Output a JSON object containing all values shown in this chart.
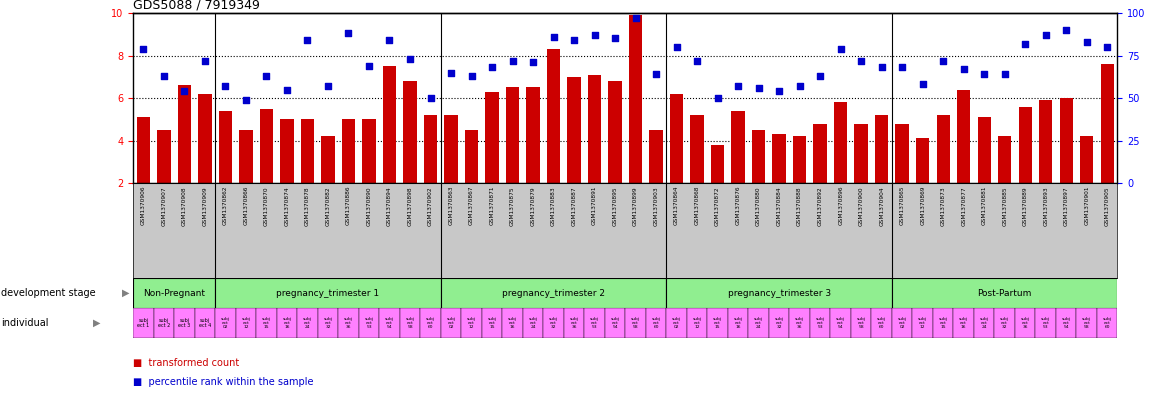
{
  "title": "GDS5088 / 7919349",
  "samples": [
    "GSM1370906",
    "GSM1370907",
    "GSM1370908",
    "GSM1370909",
    "GSM1370862",
    "GSM1370866",
    "GSM1370870",
    "GSM1370874",
    "GSM1370878",
    "GSM1370882",
    "GSM1370886",
    "GSM1370890",
    "GSM1370894",
    "GSM1370898",
    "GSM1370902",
    "GSM1370863",
    "GSM1370867",
    "GSM1370871",
    "GSM1370875",
    "GSM1370879",
    "GSM1370883",
    "GSM1370887",
    "GSM1370891",
    "GSM1370895",
    "GSM1370899",
    "GSM1370903",
    "GSM1370864",
    "GSM1370868",
    "GSM1370872",
    "GSM1370876",
    "GSM1370880",
    "GSM1370884",
    "GSM1370888",
    "GSM1370892",
    "GSM1370896",
    "GSM1370900",
    "GSM1370904",
    "GSM1370865",
    "GSM1370869",
    "GSM1370873",
    "GSM1370877",
    "GSM1370881",
    "GSM1370885",
    "GSM1370889",
    "GSM1370893",
    "GSM1370897",
    "GSM1370901",
    "GSM1370905"
  ],
  "bar_values": [
    5.1,
    4.5,
    6.6,
    6.2,
    5.4,
    4.5,
    5.5,
    5.0,
    5.0,
    4.2,
    5.0,
    5.0,
    7.5,
    6.8,
    5.2,
    5.2,
    4.5,
    6.3,
    6.5,
    6.5,
    8.3,
    7.0,
    7.1,
    6.8,
    9.9,
    4.5,
    6.2,
    5.2,
    3.8,
    5.4,
    4.5,
    4.3,
    4.2,
    4.8,
    5.8,
    4.8,
    5.2,
    4.8,
    4.1,
    5.2,
    6.4,
    5.1,
    4.2,
    5.6,
    5.9,
    6.0,
    4.2,
    7.6
  ],
  "dot_values": [
    79,
    63,
    54,
    72,
    57,
    49,
    63,
    55,
    84,
    57,
    88,
    69,
    84,
    73,
    50,
    65,
    63,
    68,
    72,
    71,
    86,
    84,
    87,
    85,
    97,
    64,
    80,
    72,
    50,
    57,
    56,
    54,
    57,
    63,
    79,
    72,
    68,
    68,
    58,
    72,
    67,
    64,
    64,
    82,
    87,
    90,
    83,
    80
  ],
  "groups": [
    {
      "label": "Non-Pregnant",
      "start": 0,
      "end": 4,
      "color": "#90EE90"
    },
    {
      "label": "pregnancy_trimester 1",
      "start": 4,
      "end": 15,
      "color": "#90EE90"
    },
    {
      "label": "pregnancy_trimester 2",
      "start": 15,
      "end": 26,
      "color": "#90EE90"
    },
    {
      "label": "pregnancy_trimester 3",
      "start": 26,
      "end": 37,
      "color": "#90EE90"
    },
    {
      "label": "Post-Partum",
      "start": 37,
      "end": 48,
      "color": "#90EE90"
    }
  ],
  "ind_labels_np": [
    "subj\nect 1",
    "subj\nect 2",
    "subj\nect 3",
    "subj\nect 4"
  ],
  "ind_labels_repeat": [
    "subj\nect\n02",
    "subj\nect\n12",
    "subj\nect\n15",
    "subj\nect\n16",
    "subj\nect\n24",
    "subj\nect\n32",
    "subj\nect\n36",
    "subj\nect\n53",
    "subj\nect\n54",
    "subj\nect\n58",
    "subj\nect\n60"
  ],
  "bar_color": "#CC0000",
  "dot_color": "#0000CC",
  "ylim_left": [
    2,
    10
  ],
  "ylim_right": [
    0,
    100
  ],
  "yticks_left": [
    2,
    4,
    6,
    8,
    10
  ],
  "yticks_right": [
    0,
    25,
    50,
    75,
    100
  ],
  "bg_color": "#ffffff",
  "xlabel_bg": "#C8C8C8",
  "ind_color": "#FF80FF",
  "dev_color": "#90EE90",
  "group_boundaries": [
    4,
    15,
    26,
    37
  ]
}
